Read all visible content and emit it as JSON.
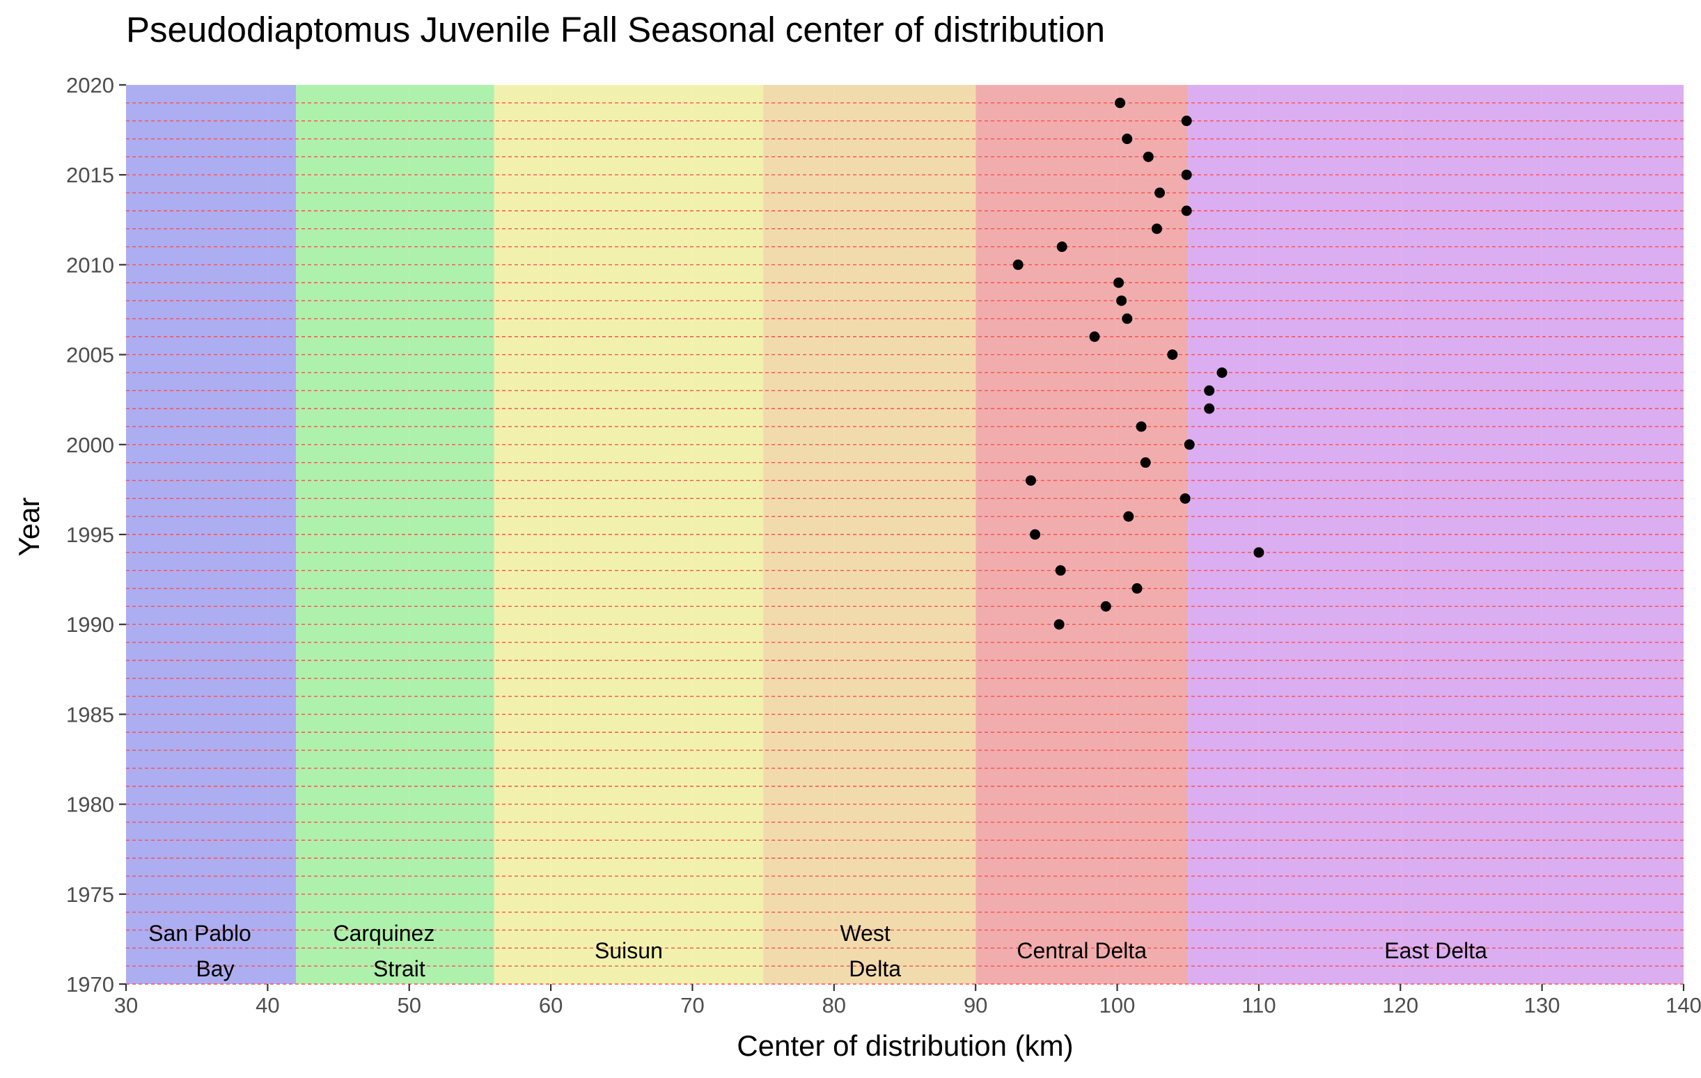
{
  "chart_data": {
    "type": "scatter",
    "title": "Pseudodiaptomus Juvenile Fall Seasonal center of distribution",
    "xlabel": "Center of distribution (km)",
    "ylabel": "Year",
    "xlim": [
      30,
      140
    ],
    "ylim": [
      1970,
      2020
    ],
    "x_ticks": [
      30,
      40,
      50,
      60,
      70,
      80,
      90,
      100,
      110,
      120,
      130,
      140
    ],
    "y_ticks": [
      1970,
      1975,
      1980,
      1985,
      1990,
      1995,
      2000,
      2005,
      2010,
      2015,
      2020
    ],
    "y_tick_labels": [
      "1970",
      "1975",
      "1980",
      "1985",
      "1990",
      "1995",
      "2000",
      "2005",
      "2010",
      "2015",
      "2020"
    ],
    "reference_lines": {
      "orientation": "horizontal",
      "every_year_from": 1970,
      "every_year_to": 2019,
      "color": "#ff4d4d",
      "style": "dashed"
    },
    "regions": [
      {
        "name": "San Pablo Bay",
        "label_lines": [
          "San Pablo",
          "Bay"
        ],
        "xmin": 30,
        "xmax": 42,
        "color": "#a6a6f2"
      },
      {
        "name": "Carquinez Strait",
        "label_lines": [
          "Carquinez",
          "Strait"
        ],
        "xmin": 42,
        "xmax": 56,
        "color": "#a6f2a6"
      },
      {
        "name": "Suisun",
        "label_lines": [
          "Suisun"
        ],
        "xmin": 56,
        "xmax": 75,
        "color": "#f2f2a6"
      },
      {
        "name": "West Delta",
        "label_lines": [
          "West",
          "Delta"
        ],
        "xmin": 75,
        "xmax": 90,
        "color": "#f2d9a6"
      },
      {
        "name": "Central Delta",
        "label_lines": [
          "Central Delta"
        ],
        "xmin": 90,
        "xmax": 105,
        "color": "#f2a6a6"
      },
      {
        "name": "East Delta",
        "label_lines": [
          "East Delta"
        ],
        "xmin": 105,
        "xmax": 140,
        "color": "#d9a6f2"
      }
    ],
    "points": [
      {
        "year": 1990,
        "x": 95.9
      },
      {
        "year": 1991,
        "x": 99.2
      },
      {
        "year": 1992,
        "x": 101.4
      },
      {
        "year": 1993,
        "x": 96.0
      },
      {
        "year": 1994,
        "x": 110.0
      },
      {
        "year": 1995,
        "x": 94.2
      },
      {
        "year": 1996,
        "x": 100.8
      },
      {
        "year": 1997,
        "x": 104.8
      },
      {
        "year": 1998,
        "x": 93.9
      },
      {
        "year": 1999,
        "x": 102.0
      },
      {
        "year": 2000,
        "x": 105.1
      },
      {
        "year": 2001,
        "x": 101.7
      },
      {
        "year": 2002,
        "x": 106.5
      },
      {
        "year": 2003,
        "x": 106.5
      },
      {
        "year": 2004,
        "x": 107.4
      },
      {
        "year": 2005,
        "x": 103.9
      },
      {
        "year": 2006,
        "x": 98.4
      },
      {
        "year": 2007,
        "x": 100.7
      },
      {
        "year": 2008,
        "x": 100.3
      },
      {
        "year": 2009,
        "x": 100.1
      },
      {
        "year": 2010,
        "x": 93.0
      },
      {
        "year": 2011,
        "x": 96.1
      },
      {
        "year": 2012,
        "x": 102.8
      },
      {
        "year": 2013,
        "x": 104.9
      },
      {
        "year": 2014,
        "x": 103.0
      },
      {
        "year": 2015,
        "x": 104.9
      },
      {
        "year": 2016,
        "x": 102.2
      },
      {
        "year": 2017,
        "x": 100.7
      },
      {
        "year": 2018,
        "x": 104.9
      },
      {
        "year": 2019,
        "x": 100.2
      }
    ],
    "colors": {
      "point": "#000000",
      "panel_background": "#ebebeb",
      "gridline": "#ffffff"
    },
    "grid": true,
    "legend": "none"
  }
}
